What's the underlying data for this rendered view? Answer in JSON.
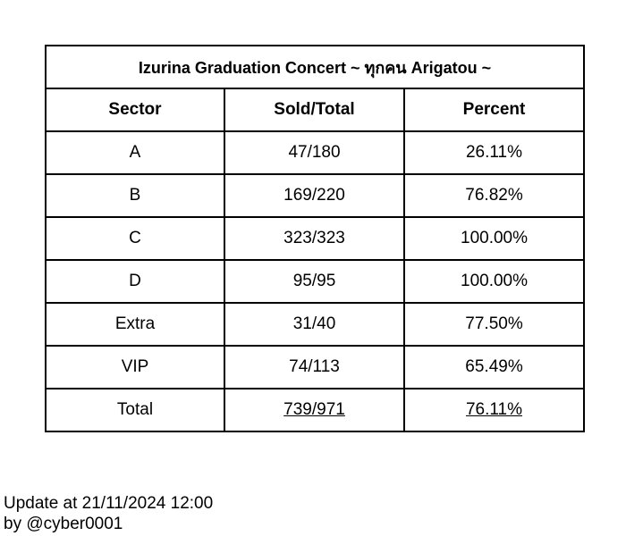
{
  "table": {
    "title": "Izurina Graduation Concert ~ ทุกคน Arigatou ~",
    "headers": [
      "Sector",
      "Sold/Total",
      "Percent"
    ],
    "rows": [
      {
        "sector": "A",
        "sold_total": "47/180",
        "percent": "26.11%"
      },
      {
        "sector": "B",
        "sold_total": "169/220",
        "percent": "76.82%"
      },
      {
        "sector": "C",
        "sold_total": "323/323",
        "percent": "100.00%"
      },
      {
        "sector": "D",
        "sold_total": "95/95",
        "percent": "100.00%"
      },
      {
        "sector": "Extra",
        "sold_total": "31/40",
        "percent": "77.50%"
      },
      {
        "sector": "VIP",
        "sold_total": "74/113",
        "percent": "65.49%"
      }
    ],
    "total": {
      "sector": "Total",
      "sold_total": "739/971",
      "percent": "76.11%"
    }
  },
  "footer": {
    "update": "Update at 21/11/2024 12:00",
    "author": "by @cyber0001"
  }
}
